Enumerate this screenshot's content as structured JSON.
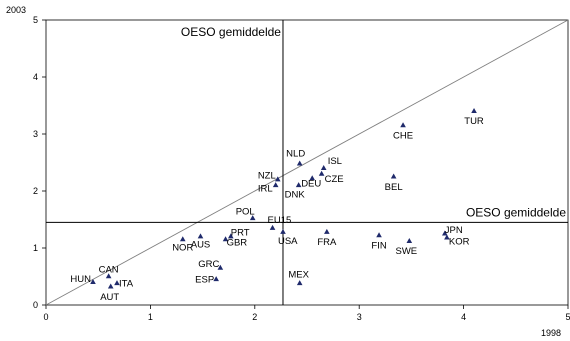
{
  "chart_data": {
    "type": "scatter",
    "title": "",
    "xlabel": "1998",
    "ylabel": "2003",
    "xlim": [
      0,
      5
    ],
    "ylim": [
      0,
      5
    ],
    "xticks": [
      "0",
      "1",
      "2",
      "3",
      "4",
      "5"
    ],
    "yticks": [
      "0",
      "1",
      "2",
      "3",
      "4",
      "5"
    ],
    "grid": false,
    "diagonal_line": true,
    "reference_lines": {
      "vertical": {
        "x": 2.27,
        "label": "OESO gemiddelde"
      },
      "horizontal": {
        "y": 1.45,
        "label": "OESO gemiddelde"
      }
    },
    "marker_color": "#1f2a6b",
    "line_color": "#000000",
    "diagonal_color": "#808080",
    "points": [
      {
        "label": "TUR",
        "x": 4.1,
        "y": 3.4
      },
      {
        "label": "CHE",
        "x": 3.42,
        "y": 3.15
      },
      {
        "label": "BEL",
        "x": 3.33,
        "y": 2.25
      },
      {
        "label": "NLD",
        "x": 2.43,
        "y": 2.48
      },
      {
        "label": "ISL",
        "x": 2.66,
        "y": 2.4
      },
      {
        "label": "CZE",
        "x": 2.64,
        "y": 2.3
      },
      {
        "label": "DEU",
        "x": 2.55,
        "y": 2.22
      },
      {
        "label": "DNK",
        "x": 2.42,
        "y": 2.1
      },
      {
        "label": "NZL",
        "x": 2.22,
        "y": 2.2
      },
      {
        "label": "IRL",
        "x": 2.2,
        "y": 2.1
      },
      {
        "label": "POL",
        "x": 1.98,
        "y": 1.52
      },
      {
        "label": "EU15",
        "x": 2.17,
        "y": 1.35
      },
      {
        "label": "USA",
        "x": 2.27,
        "y": 1.28
      },
      {
        "label": "FRA",
        "x": 2.69,
        "y": 1.28
      },
      {
        "label": "FIN",
        "x": 3.19,
        "y": 1.22
      },
      {
        "label": "SWE",
        "x": 3.48,
        "y": 1.12
      },
      {
        "label": "JPN",
        "x": 3.82,
        "y": 1.25
      },
      {
        "label": "KOR",
        "x": 3.84,
        "y": 1.18
      },
      {
        "label": "PRT",
        "x": 1.77,
        "y": 1.2
      },
      {
        "label": "GBR",
        "x": 1.72,
        "y": 1.15
      },
      {
        "label": "AUS",
        "x": 1.48,
        "y": 1.2
      },
      {
        "label": "NOR",
        "x": 1.31,
        "y": 1.15
      },
      {
        "label": "GRC",
        "x": 1.67,
        "y": 0.65
      },
      {
        "label": "ESP",
        "x": 1.63,
        "y": 0.45
      },
      {
        "label": "MEX",
        "x": 2.43,
        "y": 0.38
      },
      {
        "label": "CAN",
        "x": 0.6,
        "y": 0.5
      },
      {
        "label": "HUN",
        "x": 0.45,
        "y": 0.4
      },
      {
        "label": "ITA",
        "x": 0.68,
        "y": 0.38
      },
      {
        "label": "AUT",
        "x": 0.62,
        "y": 0.32
      }
    ]
  }
}
